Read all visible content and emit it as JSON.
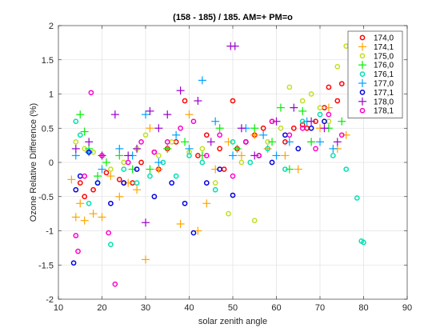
{
  "chart_data": {
    "type": "scatter",
    "title": "(158 - 185) / 185.  AM=+ PM=o",
    "xlabel": "solar zenith angle",
    "ylabel": "Ozone Relative Difference (%)",
    "xlim": [
      10,
      90
    ],
    "ylim": [
      -2,
      2
    ],
    "xticks": [
      10,
      20,
      30,
      40,
      50,
      60,
      70,
      80,
      90
    ],
    "yticks": [
      -2,
      -1.5,
      -1,
      -0.5,
      0,
      0.5,
      1,
      1.5,
      2
    ],
    "xtick_labels": [
      "10",
      "20",
      "30",
      "40",
      "50",
      "60",
      "70",
      "80",
      "90"
    ],
    "ytick_labels": [
      "-2",
      "-1.5",
      "-1",
      "-0.5",
      "0",
      "0.5",
      "1",
      "1.5",
      "2"
    ],
    "grid": true,
    "legend_position": "top-right",
    "series": [
      {
        "name": "174,0",
        "marker": "o",
        "color": "#ff0000",
        "x": [
          15,
          16,
          18,
          21,
          24,
          25,
          27,
          29,
          32,
          33,
          35,
          37,
          39,
          42,
          44,
          47,
          48,
          50,
          51,
          53,
          55,
          57,
          59,
          62,
          64,
          66,
          67,
          69,
          71,
          72,
          74,
          75
        ],
        "y": [
          -0.3,
          -0.5,
          -0.4,
          -0.15,
          -0.25,
          -0.3,
          -0.3,
          0,
          0.15,
          -0.1,
          0.2,
          0.3,
          0.9,
          0.1,
          0.4,
          0.2,
          -0.1,
          0.9,
          0.2,
          0.3,
          0.4,
          0.5,
          0.6,
          0.3,
          0.5,
          0.55,
          0.5,
          0.6,
          0.8,
          1.1,
          0.9,
          1.15
        ]
      },
      {
        "name": "174,1",
        "marker": "+",
        "color": "#ffa500",
        "x": [
          13,
          14,
          15,
          16,
          18,
          20,
          22,
          24,
          26,
          28,
          30,
          31,
          33,
          35,
          38,
          40,
          42,
          44,
          46,
          49,
          52,
          55,
          58,
          62,
          65,
          68,
          70,
          72,
          74,
          76
        ],
        "y": [
          -0.25,
          -0.8,
          -0.6,
          -0.85,
          -0.75,
          -0.8,
          -0.2,
          -0.5,
          -0.3,
          -0.4,
          -1.42,
          0.5,
          -0.1,
          0.2,
          -0.9,
          0.7,
          -1.0,
          -0.6,
          -0.1,
          0.3,
          0.1,
          0.4,
          0.2,
          0.1,
          -0.1,
          0.3,
          0.5,
          0.8,
          0.2,
          0.4
        ]
      },
      {
        "name": "175,0",
        "marker": "o",
        "color": "#c0e020",
        "x": [
          14,
          16,
          18,
          20,
          22,
          25,
          28,
          30,
          33,
          36,
          40,
          43,
          46,
          49,
          52,
          55,
          58,
          61,
          63,
          66,
          68,
          70,
          72,
          74,
          76
        ],
        "y": [
          0.3,
          0.2,
          0.15,
          0.1,
          -0.1,
          0.0,
          0.2,
          0.4,
          0.1,
          0.3,
          0.15,
          0.2,
          -0.3,
          -0.75,
          0.0,
          -0.85,
          0.3,
          0.5,
          1.1,
          0.9,
          1.0,
          0.8,
          0.6,
          1.4,
          1.7
        ]
      },
      {
        "name": "176,0",
        "marker": "+",
        "color": "#00ee00",
        "x": [
          15,
          16,
          17,
          19,
          21,
          24,
          27,
          31,
          35,
          39,
          43,
          47,
          51,
          55,
          59,
          61,
          63,
          66,
          68,
          72,
          75
        ],
        "y": [
          0.7,
          0.45,
          0.2,
          -0.2,
          0.0,
          0.1,
          -0.1,
          -0.1,
          0.2,
          0.3,
          0.1,
          0.5,
          0.2,
          0.5,
          0.3,
          0.8,
          -0.1,
          0.75,
          0.3,
          0.5,
          0.6
        ]
      },
      {
        "name": "176,1",
        "marker": "o",
        "color": "#00e0b0",
        "x": [
          14,
          15,
          17,
          19,
          22,
          25,
          28,
          31,
          34,
          37,
          40,
          43,
          46,
          50,
          54,
          58,
          62,
          66,
          70,
          73,
          76,
          78.5,
          79.5,
          80
        ],
        "y": [
          0.6,
          0.4,
          -0.6,
          -0.3,
          -1.2,
          -0.1,
          -0.3,
          -0.2,
          0.0,
          -0.2,
          0.1,
          0.0,
          -0.4,
          0.3,
          0.0,
          0.2,
          -0.1,
          0.6,
          0.7,
          0.1,
          -0.1,
          -0.52,
          -1.15,
          -1.17
        ]
      },
      {
        "name": "177,0",
        "marker": "+",
        "color": "#00a0ff",
        "x": [
          14,
          17,
          20,
          24,
          27,
          30,
          33,
          37,
          40,
          43,
          46,
          50,
          53,
          57,
          60,
          63,
          67,
          70,
          73
        ],
        "y": [
          0.1,
          0.15,
          -0.1,
          0.2,
          0.1,
          0.7,
          0.0,
          0.4,
          0.2,
          1.2,
          0.6,
          0.1,
          0.5,
          0.4,
          0.1,
          0.3,
          0.6,
          0.3,
          0.2
        ]
      },
      {
        "name": "177,1",
        "marker": "o",
        "color": "#0000dd",
        "x": [
          13.5,
          14,
          15,
          17,
          19,
          22,
          25,
          28,
          32,
          36,
          39,
          41,
          44,
          47,
          50,
          53,
          56,
          59,
          62,
          65,
          68,
          71
        ],
        "y": [
          -1.47,
          -0.4,
          -0.2,
          0.15,
          -0.3,
          -0.6,
          -0.3,
          -0.1,
          -0.5,
          -0.3,
          -0.6,
          -1.03,
          -0.3,
          -0.1,
          -0.48,
          0.3,
          0.1,
          0.0,
          0.4,
          0.2,
          0.5,
          0.6
        ]
      },
      {
        "name": "178,0",
        "marker": "+",
        "color": "#9900cc",
        "x": [
          14,
          17,
          20,
          23,
          26,
          28,
          30,
          31,
          33,
          35,
          38,
          42,
          45,
          49.5,
          50.5,
          52,
          55,
          60,
          64,
          68,
          71,
          74
        ],
        "y": [
          0.2,
          0.3,
          0.1,
          0.7,
          0.1,
          0.2,
          -0.88,
          0.75,
          0.5,
          0.7,
          1.05,
          0.9,
          0.3,
          1.7,
          1.7,
          0.5,
          0.1,
          0.6,
          0.8,
          0.6,
          0.5,
          0.3
        ]
      },
      {
        "name": "178,1",
        "marker": "o",
        "color": "#ff00cc",
        "x": [
          14,
          14.5,
          16,
          17.5,
          20,
          21.5,
          23,
          26,
          29,
          32,
          35,
          38,
          41,
          44,
          47,
          50,
          53,
          56,
          59,
          63,
          66,
          69,
          72,
          75
        ],
        "y": [
          -1.07,
          -1.3,
          -0.2,
          1.02,
          0.1,
          -1.03,
          -1.78,
          0.0,
          0.3,
          0.15,
          0.3,
          0.5,
          0.6,
          0.1,
          0.4,
          -0.2,
          0.3,
          0.1,
          0.6,
          0.4,
          0.5,
          0.2,
          0.7,
          0.4
        ]
      }
    ]
  }
}
